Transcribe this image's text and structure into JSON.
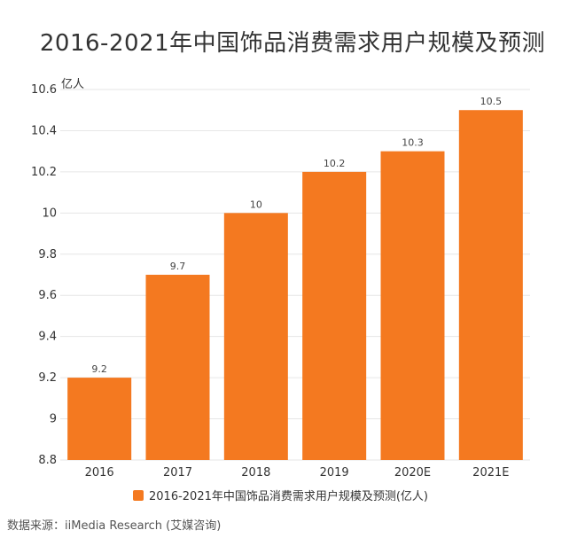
{
  "chart_data": {
    "type": "bar",
    "title": "2016-2021年中国饰品消费需求用户规模及预测",
    "ylabel": "亿人",
    "categories": [
      "2016",
      "2017",
      "2018",
      "2019",
      "2020E",
      "2021E"
    ],
    "series": [
      {
        "name": "2016-2021年中国饰品消费需求用户规模及预测(亿人)",
        "values": [
          9.2,
          9.7,
          10,
          10.2,
          10.3,
          10.5
        ]
      }
    ],
    "data_labels": [
      "9.2",
      "9.7",
      "10",
      "10.2",
      "10.3",
      "10.5"
    ],
    "ylim": [
      8.8,
      10.6
    ],
    "yticks": [
      8.8,
      9,
      9.2,
      9.4,
      9.6,
      9.8,
      10,
      10.2,
      10.4,
      10.6
    ],
    "ytick_labels": [
      "8.8",
      "9",
      "9.2",
      "9.4",
      "9.6",
      "9.8",
      "10",
      "10.2",
      "10.4",
      "10.6"
    ],
    "grid": true,
    "legend_position": "bottom",
    "bar_color": "#f47920",
    "grid_color": "#e6e6e6"
  },
  "source": "数据来源：iiMedia Research (艾媒咨询)"
}
